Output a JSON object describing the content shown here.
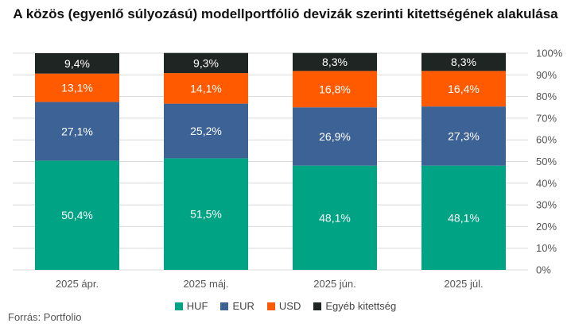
{
  "chart_data": {
    "type": "bar",
    "stacked": true,
    "title": "A közös (egyenlő súlyozású) modellportfólió devizák szerinti kitettségének alakulása",
    "categories": [
      "2025 ápr.",
      "2025 máj.",
      "2025 jún.",
      "2025 júl."
    ],
    "series": [
      {
        "name": "HUF",
        "color": "#00a383",
        "values": [
          50.4,
          51.5,
          48.1,
          48.1
        ]
      },
      {
        "name": "EUR",
        "color": "#3c6296",
        "values": [
          27.1,
          25.2,
          26.9,
          27.3
        ]
      },
      {
        "name": "USD",
        "color": "#ff5a00",
        "values": [
          13.1,
          14.1,
          16.8,
          16.4
        ]
      },
      {
        "name": "Egyéb kitettség",
        "color": "#1f2522",
        "values": [
          9.4,
          9.3,
          8.3,
          8.3
        ]
      }
    ],
    "ylim": [
      0,
      100
    ],
    "y_ticks": [
      "0%",
      "10%",
      "20%",
      "30%",
      "40%",
      "50%",
      "60%",
      "70%",
      "80%",
      "90%",
      "100%"
    ],
    "grid": true,
    "y_axis_position": "right",
    "legend_position": "bottom"
  },
  "source": "Forrás: Portfolio"
}
